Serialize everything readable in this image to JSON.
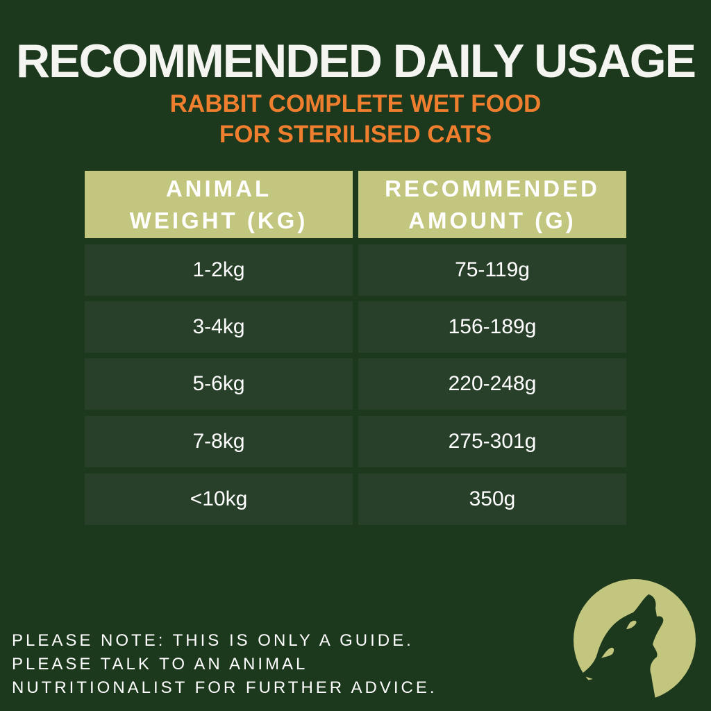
{
  "title": "RECOMMENDED DAILY USAGE",
  "subtitle": [
    "RABBIT COMPLETE WET FOOD",
    "FOR STERILISED CATS"
  ],
  "table": {
    "headers": [
      [
        "ANIMAL",
        "WEIGHT (KG)"
      ],
      [
        "RECOMMENDED",
        "AMOUNT (G)"
      ]
    ],
    "rows": [
      [
        "1-2kg",
        "75-119g"
      ],
      [
        "3-4kg",
        "156-189g"
      ],
      [
        "5-6kg",
        "220-248g"
      ],
      [
        "7-8kg",
        "275-301g"
      ],
      [
        "<10kg",
        "350g"
      ]
    ]
  },
  "note": [
    "PLEASE NOTE: THIS IS ONLY A GUIDE.",
    "PLEASE TALK TO AN ANIMAL",
    "NUTRITIONALIST FOR FURTHER ADVICE."
  ],
  "logo": {
    "icon": "howling-wolf-moon-icon"
  },
  "colors": {
    "background": "#1c381d",
    "header": "#c3c67e",
    "row": "#283f29",
    "accent": "#ef7f2f"
  }
}
